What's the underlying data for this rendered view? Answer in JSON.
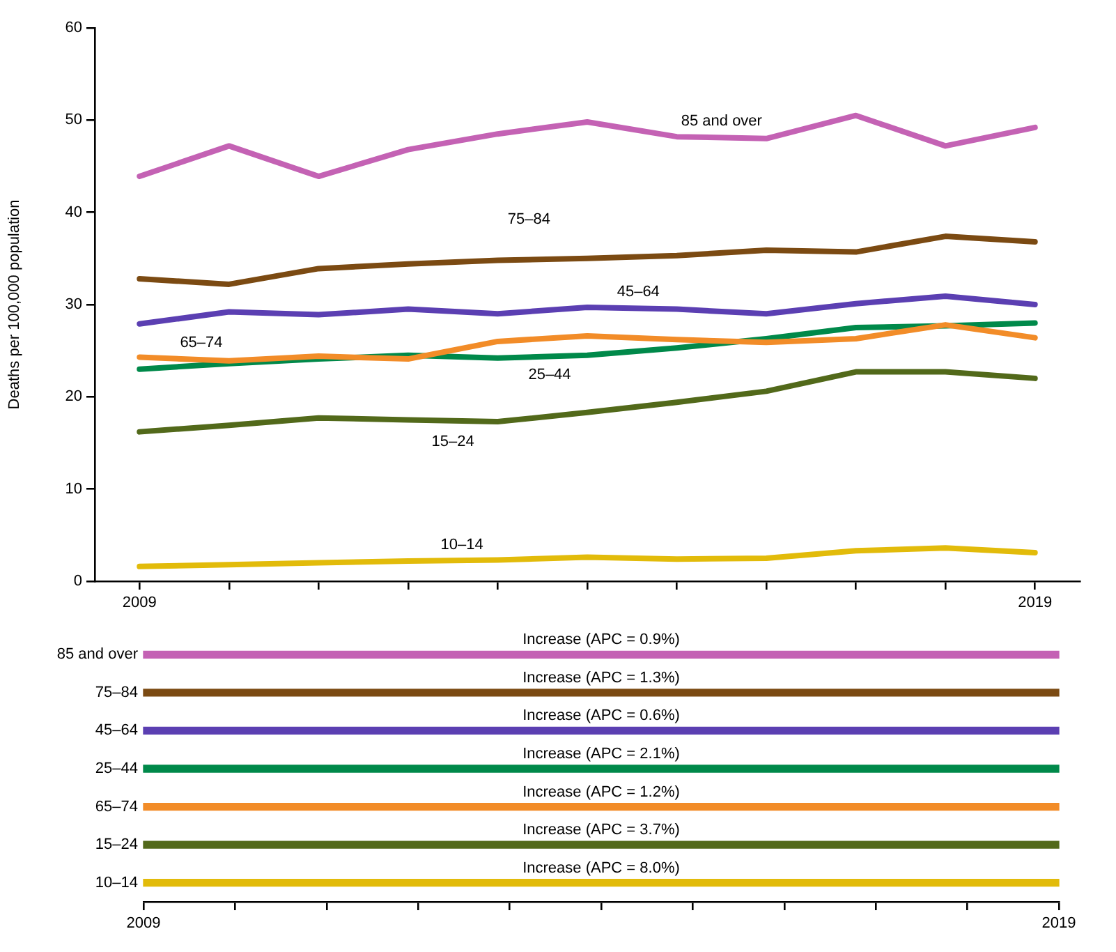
{
  "chart_data": [
    {
      "type": "line",
      "ylabel": "Deaths per 100,000 population",
      "categories": [
        "2009",
        null,
        null,
        null,
        null,
        null,
        null,
        null,
        null,
        null,
        "2019"
      ],
      "ylim": [
        0,
        60
      ],
      "yticks": [
        0,
        10,
        20,
        30,
        40,
        50,
        60
      ],
      "series": [
        {
          "name": "85 and over",
          "color": "#c462b4",
          "values": [
            43.9,
            47.2,
            43.9,
            46.8,
            48.5,
            49.8,
            48.2,
            48.0,
            50.5,
            47.2,
            49.2
          ]
        },
        {
          "name": "75–84",
          "color": "#7b4a12",
          "values": [
            32.8,
            32.2,
            33.9,
            34.4,
            34.8,
            35.0,
            35.3,
            35.9,
            35.7,
            37.4,
            36.8
          ]
        },
        {
          "name": "45–64",
          "color": "#5b3fb2",
          "values": [
            27.9,
            29.2,
            28.9,
            29.5,
            29.0,
            29.7,
            29.5,
            29.0,
            30.1,
            30.9,
            30.0
          ]
        },
        {
          "name": "65–74",
          "color": "#f28c28",
          "values": [
            24.3,
            23.9,
            24.4,
            24.1,
            26.0,
            26.6,
            26.2,
            25.9,
            26.3,
            27.8,
            26.4
          ]
        },
        {
          "name": "25–44",
          "color": "#00894a",
          "values": [
            23.0,
            23.6,
            24.1,
            24.5,
            24.2,
            24.5,
            25.3,
            26.3,
            27.5,
            27.7,
            28.0
          ]
        },
        {
          "name": "15–24",
          "color": "#52691a",
          "values": [
            16.2,
            16.9,
            17.7,
            17.5,
            17.3,
            18.3,
            19.4,
            20.6,
            22.7,
            22.7,
            22.0
          ]
        },
        {
          "name": "10–14",
          "color": "#e2bb0a",
          "values": [
            1.6,
            1.8,
            2.0,
            2.2,
            2.3,
            2.6,
            2.4,
            2.5,
            3.3,
            3.6,
            3.1
          ]
        }
      ]
    },
    {
      "type": "bar",
      "orientation": "horizontal",
      "categories": [
        "85 and over",
        "75–84",
        "45–64",
        "25–44",
        "65–74",
        "15–24",
        "10–14"
      ],
      "base": [
        2009,
        2009,
        2009,
        2009,
        2009,
        2009,
        2009
      ],
      "values": [
        10,
        10,
        10,
        10,
        10,
        10,
        10
      ],
      "colors": [
        "#c462b4",
        "#7b4a12",
        "#5b3fb2",
        "#00894a",
        "#f28c28",
        "#52691a",
        "#e2bb0a"
      ],
      "xlim": [
        2009,
        2019
      ],
      "xticks": [
        2009,
        {
          "value": 2010,
          "label": null
        },
        {
          "value": 2011,
          "label": null
        },
        {
          "value": 2012,
          "label": null
        },
        {
          "value": 2013,
          "label": null
        },
        {
          "value": 2014,
          "label": null
        },
        {
          "value": 2015,
          "label": null
        },
        {
          "value": 2016,
          "label": null
        },
        {
          "value": 2017,
          "label": null
        },
        {
          "value": 2018,
          "label": null
        },
        2019
      ],
      "annotations": [
        {
          "text": "Increase (APC = 0.9%)",
          "y": "85 and over"
        },
        {
          "text": "Increase (APC = 1.3%)",
          "y": "75–84"
        },
        {
          "text": "Increase (APC = 0.6%)",
          "y": "45–64"
        },
        {
          "text": "Increase (APC = 2.1%)",
          "y": "25–44"
        },
        {
          "text": "Increase (APC = 1.2%)",
          "y": "65–74"
        },
        {
          "text": "Increase (APC = 3.7%)",
          "y": "15–24"
        },
        {
          "text": "Increase (APC = 8.0%)",
          "y": "10–14"
        }
      ]
    }
  ]
}
